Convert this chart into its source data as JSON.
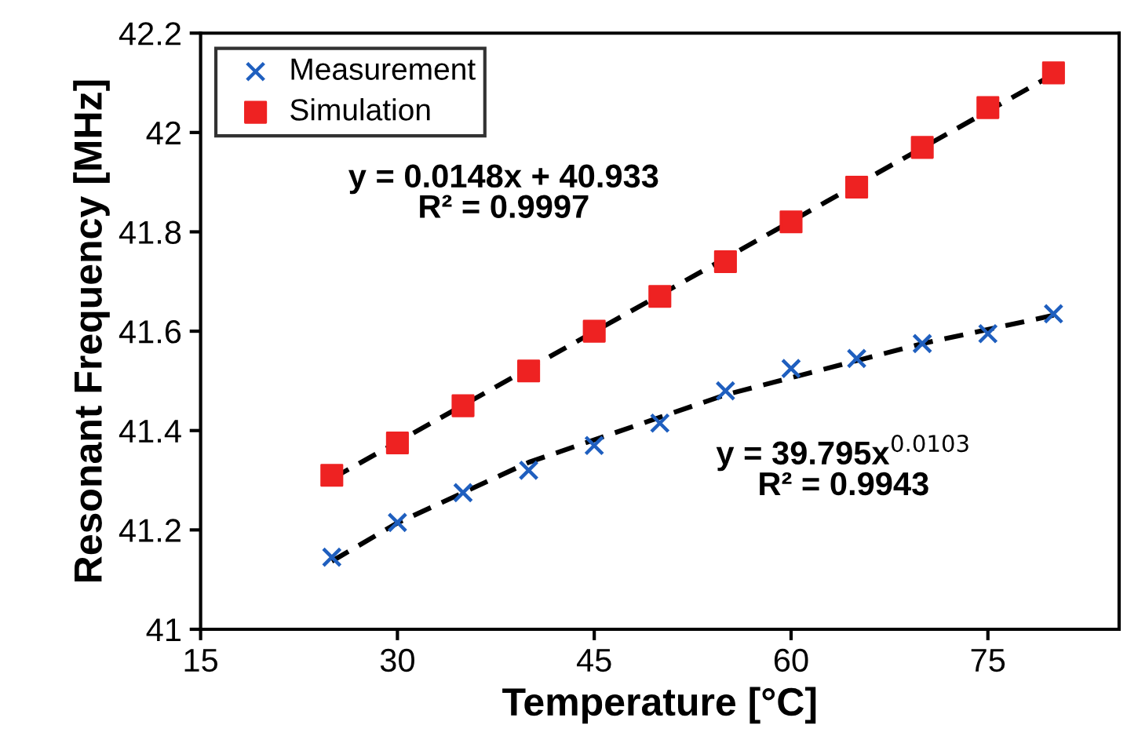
{
  "chart_data": {
    "type": "scatter",
    "xlabel": "Temperature [°C]",
    "ylabel": "Resonant Frequency [MHz]",
    "xlim": [
      15,
      85
    ],
    "xticks": [
      15,
      30,
      45,
      60,
      75
    ],
    "ylim": [
      41,
      42.2
    ],
    "yticks": [
      41,
      {
        "value": 41.2,
        "label": "41.2"
      },
      {
        "value": 41.4,
        "label": "41.4"
      },
      {
        "value": 41.6,
        "label": "41.6"
      },
      {
        "value": 41.8,
        "label": "41.8"
      },
      42,
      {
        "value": 42.2,
        "label": "42.2"
      }
    ],
    "grid": false,
    "legend": "top left",
    "series": [
      {
        "type": "line",
        "color": "#000000",
        "line_style": "dashed",
        "marker": "none",
        "x": [
          25,
          80
        ],
        "values": [
          41.303,
          42.117
        ]
      },
      {
        "type": "line",
        "color": "#000000",
        "line_style": "dashed",
        "marker": "none",
        "x": [
          25,
          30,
          40,
          55,
          70,
          80
        ],
        "values": [
          41.137,
          41.214,
          41.336,
          41.472,
          41.575,
          41.632
        ]
      },
      {
        "name": "Measurement",
        "marker": "cross",
        "color": "#1f5fbf",
        "x": [
          25,
          30,
          35,
          40,
          45,
          50,
          55,
          60,
          65,
          70,
          75,
          80
        ],
        "values": [
          41.145,
          41.215,
          41.275,
          41.32,
          41.37,
          41.415,
          41.48,
          41.525,
          41.545,
          41.575,
          41.595,
          41.635
        ]
      },
      {
        "name": "Simulation",
        "marker": "square",
        "color": "#ee2222",
        "x": [
          25,
          30,
          35,
          40,
          45,
          50,
          55,
          60,
          65,
          70,
          75,
          80
        ],
        "values": [
          41.31,
          41.375,
          41.45,
          41.52,
          41.6,
          41.67,
          41.74,
          41.82,
          41.89,
          41.97,
          42.05,
          42.12
        ]
      }
    ],
    "annotations": [
      "y = 0.0148x + 40.933\nR² = 0.9997",
      "y = 39.795x$^{0.0103}$\nR² = 0.9943"
    ]
  }
}
